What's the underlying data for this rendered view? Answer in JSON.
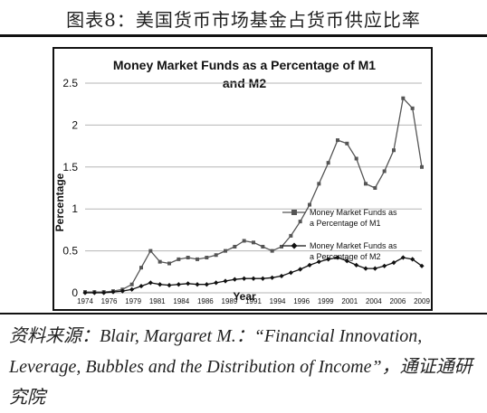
{
  "header": {
    "title": "图表8：美国货币市场基金占货币供应比率"
  },
  "chart_data": {
    "type": "line",
    "title_line1": "Money Market Funds as a Percentage of M1",
    "title_line2": "and M2",
    "xlabel": "Year",
    "ylabel": "Percentage",
    "ylim": [
      0,
      2.5
    ],
    "yticks": [
      "0",
      "0.5",
      "1",
      "1.5",
      "2",
      "2.5"
    ],
    "xticks": [
      "1974",
      "1976",
      "1979",
      "1981",
      "1984",
      "1986",
      "1989",
      "1991",
      "1994",
      "1996",
      "1999",
      "2001",
      "2004",
      "2006",
      "2009"
    ],
    "x": [
      1974,
      1975,
      1976,
      1977,
      1978,
      1979,
      1980,
      1981,
      1982,
      1983,
      1984,
      1985,
      1986,
      1987,
      1988,
      1989,
      1990,
      1991,
      1992,
      1993,
      1994,
      1995,
      1996,
      1997,
      1998,
      1999,
      2000,
      2001,
      2002,
      2003,
      2004,
      2005,
      2006,
      2007,
      2008,
      2009,
      2010
    ],
    "series": [
      {
        "name_line1": "Money Market Funds as",
        "name_line2": "a Percentage of M1",
        "marker": "square",
        "color": "#555555",
        "values": [
          0.01,
          0.01,
          0.01,
          0.02,
          0.04,
          0.1,
          0.3,
          0.5,
          0.37,
          0.35,
          0.4,
          0.42,
          0.4,
          0.42,
          0.45,
          0.5,
          0.55,
          0.62,
          0.6,
          0.55,
          0.5,
          0.55,
          0.68,
          0.85,
          1.05,
          1.3,
          1.55,
          1.82,
          1.78,
          1.6,
          1.3,
          1.25,
          1.45,
          1.7,
          2.32,
          2.2,
          1.5
        ]
      },
      {
        "name_line1": "Money Market Funds as",
        "name_line2": "a Percentage of M2",
        "marker": "diamond",
        "color": "#111111",
        "values": [
          0.0,
          0.0,
          0.0,
          0.01,
          0.02,
          0.04,
          0.08,
          0.12,
          0.1,
          0.09,
          0.1,
          0.11,
          0.1,
          0.1,
          0.12,
          0.14,
          0.16,
          0.17,
          0.17,
          0.17,
          0.18,
          0.2,
          0.24,
          0.28,
          0.33,
          0.37,
          0.4,
          0.42,
          0.38,
          0.33,
          0.29,
          0.29,
          0.32,
          0.36,
          0.42,
          0.4,
          0.32
        ]
      }
    ]
  },
  "source": {
    "text": "资料来源：Blair, Margaret M.：“Financial Innovation, Leverage, Bubbles and the Distribution of Income”，通证通研究院"
  }
}
